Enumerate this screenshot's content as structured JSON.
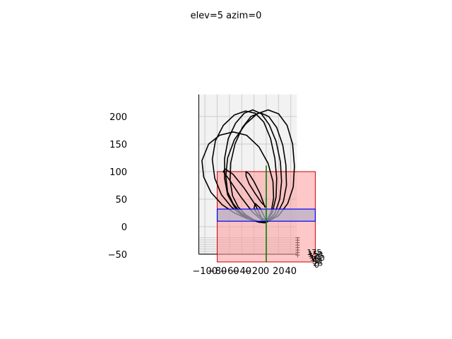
{
  "chart_data": {
    "type": "line",
    "title": "elev=5 azim=0",
    "view": {
      "elev": 5,
      "azim": 0
    },
    "x_ticks": [
      "−100",
      "−80",
      "−60",
      "−40",
      "−20",
      "0",
      "20",
      "40"
    ],
    "x_tick_values": [
      -100,
      -80,
      -60,
      -40,
      -20,
      0,
      20,
      40
    ],
    "z_ticks": [
      "−50",
      "0",
      "50",
      "100",
      "150",
      "200"
    ],
    "z_tick_values": [
      -50,
      0,
      50,
      100,
      150,
      200
    ],
    "y_tick_labels": [
      "175",
      "150",
      "125",
      "100",
      "75",
      "50",
      "25",
      "0"
    ],
    "xlim": [
      -110,
      50
    ],
    "zlim": [
      -50,
      240
    ],
    "grid": true,
    "series": [
      {
        "x": [
          0,
          20,
          35,
          44,
          46,
          43,
          34,
          20,
          3,
          -15,
          -34,
          -52,
          -63,
          -66,
          -63,
          -54,
          -42,
          -28,
          -14,
          -4,
          0
        ],
        "z": [
          8,
          20,
          42,
          72,
          110,
          150,
          184,
          205,
          212,
          205,
          186,
          158,
          125,
          92,
          63,
          42,
          26,
          15,
          9,
          7,
          8
        ]
      },
      {
        "x": [
          0,
          17,
          28,
          33,
          32,
          27,
          17,
          4,
          -10,
          -25,
          -39,
          -51,
          -58,
          -59,
          -55,
          -46,
          -34,
          -21,
          -9,
          -2,
          0
        ],
        "z": [
          8,
          22,
          46,
          75,
          112,
          148,
          180,
          200,
          207,
          200,
          180,
          150,
          116,
          84,
          56,
          36,
          22,
          13,
          8,
          7,
          8
        ]
      },
      {
        "x": [
          0,
          14,
          22,
          25,
          23,
          16,
          5,
          -8,
          -22,
          -36,
          -50,
          -62,
          -68,
          -68,
          -63,
          -52,
          -38,
          -24,
          -11,
          -3,
          0
        ],
        "z": [
          9,
          24,
          50,
          82,
          118,
          155,
          185,
          205,
          212,
          206,
          188,
          160,
          124,
          88,
          58,
          36,
          21,
          12,
          8,
          8,
          9
        ]
      },
      {
        "x": [
          0,
          10,
          16,
          17,
          14,
          7,
          -4,
          -18,
          -34,
          -52,
          -70,
          -83,
          -88,
          -84,
          -73,
          -57,
          -40,
          -24,
          -11,
          -3,
          0
        ],
        "z": [
          10,
          26,
          54,
          88,
          124,
          160,
          190,
          206,
          210,
          203,
          184,
          156,
          122,
          88,
          58,
          36,
          21,
          13,
          9,
          9,
          10
        ]
      },
      {
        "x": [
          0,
          8,
          12,
          11,
          3,
          -12,
          -32,
          -54,
          -76,
          -94,
          -105,
          -102,
          -90,
          -72,
          -52,
          -32,
          -16,
          -5,
          0
        ],
        "z": [
          10,
          26,
          52,
          82,
          115,
          145,
          166,
          172,
          166,
          150,
          120,
          90,
          62,
          40,
          25,
          15,
          10,
          9,
          10
        ]
      },
      {
        "x": [
          -2,
          -10,
          -20,
          -28,
          -33,
          -33,
          -28,
          -18,
          -8,
          0
        ],
        "z": [
          35,
          60,
          82,
          96,
          100,
          92,
          78,
          60,
          44,
          35
        ]
      },
      {
        "x": [
          -5,
          -22,
          -42,
          -60,
          -70,
          -67,
          -54,
          -36,
          -18,
          -5
        ],
        "z": [
          10,
          26,
          55,
          85,
          100,
          105,
          95,
          70,
          40,
          10
        ]
      },
      {
        "x": [
          0,
          -6,
          -14,
          -20,
          -18,
          -10,
          -3,
          0
        ],
        "z": [
          10,
          15,
          22,
          33,
          42,
          34,
          18,
          10
        ]
      }
    ],
    "planes": [
      {
        "name": "",
        "color": "#ff0000",
        "x_range": [
          -80,
          80
        ],
        "z_range": [
          -64,
          100
        ]
      },
      {
        "name": "",
        "color": "#0000ff",
        "x_range": [
          -80,
          80
        ],
        "z_range": [
          10,
          32
        ]
      }
    ],
    "vertical_line": {
      "x": 0,
      "z_range": [
        -64,
        111
      ],
      "color": "#008000"
    }
  },
  "colors": {
    "curve": "#000000",
    "red_plane_fill": "#ff9a9a",
    "red_plane_edge": "#cc0000",
    "blue_plane_edge": "#0000ff",
    "blue_plane_fill": "#b4b0c8",
    "pane_bg": "#f2f2f2",
    "grid": "#cccccc"
  }
}
